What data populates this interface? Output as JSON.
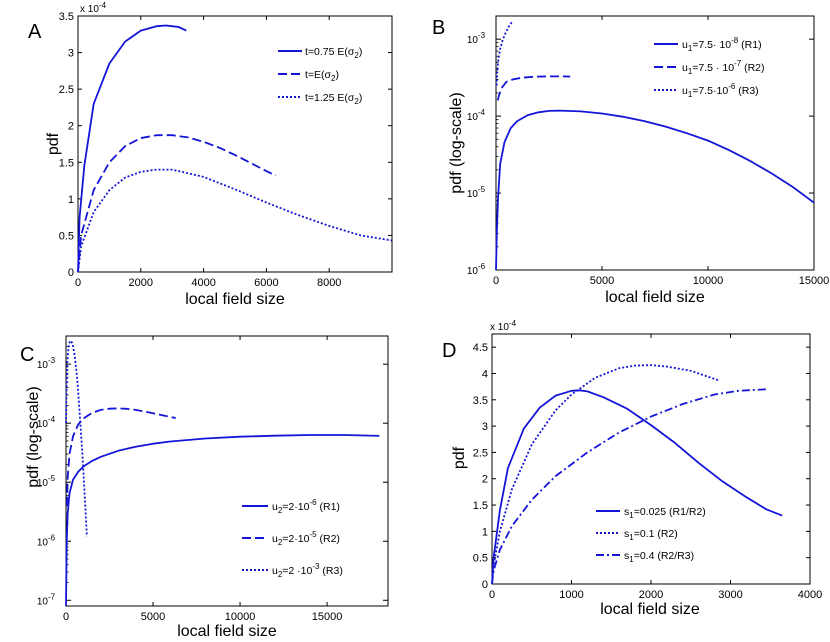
{
  "figure": {
    "colors": {
      "series": "#1515d8",
      "axis": "#000000"
    }
  },
  "chart_data": [
    {
      "panel": "A",
      "type": "line",
      "xlabel": "local field size",
      "ylabel": "pdf",
      "xlim": [
        0,
        10000
      ],
      "ylim": [
        0,
        3.5
      ],
      "yscale": "linear",
      "exponent_label": "x 10",
      "exponent_power": "-4",
      "xticks": [
        0,
        2000,
        4000,
        6000,
        8000
      ],
      "xticklabels": [
        "0",
        "2000",
        "4000",
        "6000",
        "8000"
      ],
      "yticks": [
        0,
        0.5,
        1,
        1.5,
        2,
        2.5,
        3,
        3.5
      ],
      "yticklabels": [
        "0",
        "0.5",
        "1",
        "1.5",
        "2",
        "2.5",
        "3",
        "3.5"
      ],
      "legend_position": "top-right",
      "series": [
        {
          "name": "t=0.75 E(σ",
          "name_sub": "2",
          "name_tail": ")",
          "style": "solid",
          "x": [
            0,
            50,
            200,
            500,
            1000,
            1500,
            2000,
            2500,
            2800,
            3000,
            3200,
            3450
          ],
          "y": [
            0,
            0.75,
            1.45,
            2.3,
            2.85,
            3.15,
            3.3,
            3.36,
            3.37,
            3.36,
            3.35,
            3.3
          ]
        },
        {
          "name": "t=E(σ",
          "name_sub": "2",
          "name_tail": ")",
          "style": "dashed",
          "x": [
            0,
            100,
            500,
            1000,
            1500,
            2000,
            2500,
            3000,
            3500,
            4000,
            4500,
            5000,
            5500,
            6000,
            6300
          ],
          "y": [
            0,
            0.5,
            1.12,
            1.5,
            1.72,
            1.83,
            1.87,
            1.87,
            1.84,
            1.78,
            1.7,
            1.6,
            1.49,
            1.38,
            1.32
          ]
        },
        {
          "name": "t=1.25 E(σ",
          "name_sub": "2",
          "name_tail": ")",
          "style": "dotted",
          "x": [
            0,
            100,
            500,
            1000,
            1500,
            2000,
            2500,
            3000,
            4000,
            5000,
            6000,
            7000,
            8000,
            9000,
            10000
          ],
          "y": [
            0,
            0.35,
            0.82,
            1.12,
            1.29,
            1.37,
            1.4,
            1.4,
            1.3,
            1.13,
            0.95,
            0.78,
            0.63,
            0.5,
            0.43
          ]
        }
      ]
    },
    {
      "panel": "B",
      "type": "line",
      "xlabel": "local field size",
      "ylabel": "pdf (log-scale)",
      "xlim": [
        0,
        15000
      ],
      "ylim": [
        1e-06,
        0.002
      ],
      "yscale": "log",
      "xticks": [
        0,
        5000,
        10000,
        15000
      ],
      "xticklabels": [
        "0",
        "5000",
        "10000",
        "15000"
      ],
      "ytick_exponents": [
        -6,
        -5,
        -4,
        -3
      ],
      "legend_position": "top-right",
      "series": [
        {
          "name": "u",
          "name_sub": "1",
          "name_tail": "=7.5· 10",
          "name_sup": "-8",
          "name_end": " (R1)",
          "style": "solid",
          "x": [
            0,
            40,
            100,
            200,
            400,
            700,
            1000,
            1500,
            2000,
            2500,
            3000,
            4000,
            5000,
            6000,
            7000,
            8000,
            9000,
            10000,
            11000,
            12000,
            13000,
            14000,
            15000
          ],
          "y": [
            1e-06,
            3e-06,
            9e-06,
            2.4e-05,
            4.6e-05,
            7e-05,
            8.6e-05,
            0.000103,
            0.000112,
            0.000117,
            0.000118,
            0.000115,
            0.000108,
            9.8e-05,
            8.6e-05,
            7.3e-05,
            6e-05,
            4.8e-05,
            3.6e-05,
            2.6e-05,
            1.8e-05,
            1.2e-05,
            7.5e-06
          ]
        },
        {
          "name": "u",
          "name_sub": "1",
          "name_tail": "=7.5 · 10",
          "name_sup": "-7",
          "name_end": " (R2)",
          "style": "dashed",
          "x": [
            80,
            150,
            300,
            500,
            800,
            1200,
            1800,
            2500,
            3000,
            3500
          ],
          "y": [
            0.00016,
            0.00019,
            0.00024,
            0.00028,
            0.0003,
            0.000315,
            0.000325,
            0.000328,
            0.000328,
            0.000327
          ]
        },
        {
          "name": "u",
          "name_sub": "1",
          "name_tail": "=7.5·10",
          "name_sup": "-6",
          "name_end": " (R3)",
          "style": "dotted",
          "x": [
            30,
            60,
            120,
            200,
            300,
            400,
            500,
            600,
            700,
            800
          ],
          "y": [
            0.00025,
            0.00038,
            0.00056,
            0.00075,
            0.00095,
            0.00112,
            0.00128,
            0.00145,
            0.0016,
            0.00172
          ]
        }
      ]
    },
    {
      "panel": "C",
      "type": "line",
      "xlabel": "local field size",
      "ylabel": "pdf (log-scale)",
      "xlim": [
        0,
        18500
      ],
      "ylim": [
        8e-08,
        0.003
      ],
      "yscale": "log",
      "xticks": [
        0,
        5000,
        10000,
        15000
      ],
      "xticklabels": [
        "0",
        "5000",
        "10000",
        "15000"
      ],
      "ytick_exponents": [
        -7,
        -6,
        -5,
        -4,
        -3
      ],
      "legend_position": "bottom-right",
      "series": [
        {
          "name": "u",
          "name_sub": "2",
          "name_tail": "=2·10",
          "name_sup": "-6",
          "name_end": "  (R1)",
          "style": "solid",
          "x": [
            0,
            40,
            100,
            200,
            400,
            700,
            1000,
            1500,
            2000,
            3000,
            4000,
            5000,
            6000,
            8000,
            10000,
            12000,
            14000,
            16000,
            18000
          ],
          "y": [
            8e-08,
            1e-06,
            3e-06,
            6.5e-06,
            1.1e-05,
            1.5e-05,
            1.85e-05,
            2.3e-05,
            2.7e-05,
            3.4e-05,
            4e-05,
            4.5e-05,
            4.9e-05,
            5.5e-05,
            5.9e-05,
            6.15e-05,
            6.3e-05,
            6.3e-05,
            6.1e-05
          ]
        },
        {
          "name": "u",
          "name_sub": "2",
          "name_tail": "=2·10",
          "name_sup": "-5",
          "name_end": "  (R2)",
          "style": "dashed",
          "x": [
            50,
            100,
            200,
            400,
            700,
            1000,
            1500,
            2000,
            2500,
            3000,
            3500,
            4000,
            4500,
            5000,
            5500,
            6000,
            6300
          ],
          "y": [
            4e-06,
            1.2e-05,
            3e-05,
            6e-05,
            9.5e-05,
            0.00012,
            0.00015,
            0.000168,
            0.000176,
            0.000178,
            0.000175,
            0.000168,
            0.000158,
            0.000147,
            0.000137,
            0.000128,
            0.000122
          ]
        },
        {
          "name": "u",
          "name_sub": "2",
          "name_tail": "=2 ·10",
          "name_sup": "-3",
          "name_end": "  (R3)",
          "style": "dotted",
          "x": [
            0,
            40,
            80,
            130,
            200,
            280,
            380,
            500,
            650,
            800,
            950,
            1100,
            1200
          ],
          "y": [
            0.0001,
            0.0005,
            0.0011,
            0.0018,
            0.00235,
            0.0025,
            0.0022,
            0.0014,
            0.00055,
            0.00013,
            2.8e-05,
            4.5e-06,
            1.2e-06
          ]
        }
      ]
    },
    {
      "panel": "D",
      "type": "line",
      "xlabel": "local field size",
      "ylabel": "pdf",
      "xlim": [
        0,
        4000
      ],
      "ylim": [
        0,
        4.75
      ],
      "yscale": "linear",
      "exponent_label": "x 10",
      "exponent_power": "-4",
      "xticks": [
        0,
        1000,
        2000,
        3000,
        4000
      ],
      "xticklabels": [
        "0",
        "1000",
        "2000",
        "3000",
        "4000"
      ],
      "yticks": [
        0,
        0.5,
        1,
        1.5,
        2,
        2.5,
        3,
        3.5,
        4,
        4.5
      ],
      "yticklabels": [
        "0",
        "0.5",
        "1",
        "1.5",
        "2",
        "2.5",
        "3",
        "3.5",
        "4",
        "4.5"
      ],
      "legend_position": "bottom-right",
      "series": [
        {
          "name": "s",
          "name_sub": "1",
          "name_tail": "=0.025 (R1/R2)",
          "style": "solid",
          "x": [
            0,
            20,
            100,
            200,
            400,
            600,
            800,
            1000,
            1100,
            1200,
            1400,
            1700,
            2000,
            2300,
            2600,
            2900,
            3200,
            3450,
            3650
          ],
          "y": [
            0,
            0.5,
            1.4,
            2.2,
            2.95,
            3.35,
            3.58,
            3.67,
            3.68,
            3.66,
            3.55,
            3.33,
            3.02,
            2.68,
            2.3,
            1.95,
            1.65,
            1.42,
            1.3
          ]
        },
        {
          "name": "s",
          "name_sub": "1",
          "name_tail": "=0.1 (R2)",
          "style": "dotted",
          "x": [
            0,
            20,
            100,
            250,
            500,
            800,
            1000,
            1300,
            1600,
            1800,
            2000,
            2200,
            2500,
            2850
          ],
          "y": [
            0,
            0.35,
            1.0,
            1.8,
            2.65,
            3.3,
            3.6,
            3.92,
            4.1,
            4.15,
            4.16,
            4.13,
            4.05,
            3.87
          ]
        },
        {
          "name": "s",
          "name_sub": "1",
          "name_tail": "=0.4 (R2/R3)",
          "style": "dashdot",
          "x": [
            0,
            20,
            100,
            250,
            500,
            800,
            1200,
            1600,
            2000,
            2400,
            2800,
            3100,
            3450
          ],
          "y": [
            0,
            0.25,
            0.65,
            1.1,
            1.6,
            2.05,
            2.5,
            2.88,
            3.18,
            3.42,
            3.6,
            3.67,
            3.7
          ]
        }
      ]
    }
  ]
}
